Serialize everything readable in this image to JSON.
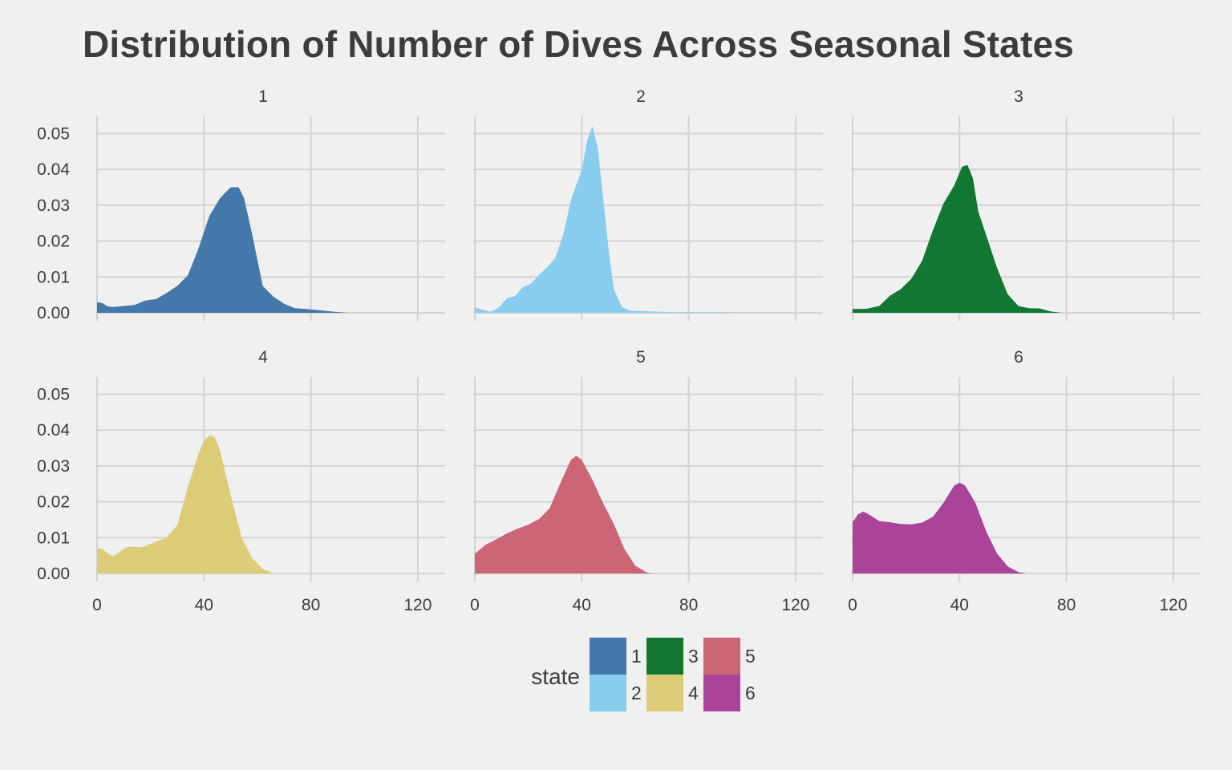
{
  "chart_data": {
    "type": "area",
    "subtype": "faceted density",
    "title": "Distribution of Number of Dives Across Seasonal States",
    "xlabel": "",
    "ylabel": "",
    "xlim": [
      0,
      130
    ],
    "ylim": [
      0,
      0.055
    ],
    "x_ticks": [
      0,
      40,
      80,
      120
    ],
    "x_tick_labels": [
      "0",
      "40",
      "80",
      "120"
    ],
    "y_ticks": [
      0,
      0.01,
      0.02,
      0.03,
      0.04,
      0.05
    ],
    "y_tick_labels": [
      "0.00",
      "0.01",
      "0.02",
      "0.03",
      "0.04",
      "0.05"
    ],
    "grid": true,
    "facet_layout": {
      "rows": 2,
      "cols": 3
    },
    "legend": {
      "title": "state",
      "placement": "bottom"
    },
    "series": [
      {
        "name": "1",
        "color": "#4477aa",
        "x": [
          0,
          2,
          4,
          6,
          10,
          14,
          18,
          22,
          26,
          30,
          34,
          38,
          42,
          46,
          50,
          53,
          55,
          58,
          62,
          66,
          70,
          74,
          78,
          82,
          86,
          90,
          94
        ],
        "y": [
          0.003,
          0.0027,
          0.0018,
          0.0016,
          0.0019,
          0.0022,
          0.0034,
          0.0038,
          0.0055,
          0.0075,
          0.0105,
          0.018,
          0.027,
          0.032,
          0.035,
          0.035,
          0.032,
          0.022,
          0.0075,
          0.0045,
          0.0025,
          0.0013,
          0.0011,
          0.0008,
          0.0005,
          0.0002,
          0.0
        ]
      },
      {
        "name": "2",
        "color": "#88ccee",
        "x": [
          0,
          3,
          6,
          9,
          12,
          15,
          18,
          21,
          24,
          27,
          30,
          33,
          36,
          38,
          40,
          42,
          44,
          46,
          48,
          50,
          52,
          55,
          58,
          62,
          66,
          70,
          75,
          80,
          85,
          90,
          95,
          100
        ],
        "y": [
          0.0015,
          0.0008,
          0.0003,
          0.0015,
          0.0041,
          0.0046,
          0.0072,
          0.0081,
          0.0106,
          0.0127,
          0.0152,
          0.0215,
          0.0316,
          0.0358,
          0.0398,
          0.048,
          0.052,
          0.046,
          0.032,
          0.018,
          0.0065,
          0.0016,
          0.0006,
          0.0005,
          0.0004,
          0.0003,
          0.0002,
          0.0002,
          0.0002,
          0.0002,
          0.0001,
          0.0
        ]
      },
      {
        "name": "3",
        "color": "#117733",
        "x": [
          0,
          5,
          10,
          14,
          18,
          22,
          26,
          30,
          34,
          38,
          41,
          43,
          45,
          47,
          50,
          54,
          58,
          62,
          66,
          70,
          74,
          78
        ],
        "y": [
          0.0011,
          0.0011,
          0.0019,
          0.0048,
          0.0066,
          0.0095,
          0.0145,
          0.023,
          0.0305,
          0.0355,
          0.0408,
          0.0412,
          0.0375,
          0.0283,
          0.0216,
          0.0126,
          0.0052,
          0.0019,
          0.0013,
          0.0012,
          0.0004,
          0.0
        ]
      },
      {
        "name": "4",
        "color": "#ddcc77",
        "x": [
          0,
          2,
          4,
          6,
          8,
          10,
          12,
          14,
          16,
          18,
          22,
          26,
          30,
          34,
          38,
          40,
          42,
          44,
          46,
          50,
          54,
          58,
          62,
          66
        ],
        "y": [
          0.007,
          0.0069,
          0.0056,
          0.0048,
          0.0058,
          0.0069,
          0.0075,
          0.0074,
          0.0073,
          0.0076,
          0.0089,
          0.01,
          0.0135,
          0.0242,
          0.0335,
          0.037,
          0.0385,
          0.038,
          0.0344,
          0.0219,
          0.0102,
          0.0043,
          0.0012,
          0.0
        ]
      },
      {
        "name": "5",
        "color": "#cc6677",
        "x": [
          0,
          4,
          8,
          12,
          16,
          20,
          24,
          28,
          32,
          36,
          38,
          40,
          44,
          48,
          52,
          56,
          60,
          64,
          66
        ],
        "y": [
          0.0055,
          0.008,
          0.0095,
          0.0112,
          0.0125,
          0.0136,
          0.0152,
          0.0182,
          0.0252,
          0.0318,
          0.0328,
          0.0317,
          0.0261,
          0.0196,
          0.0138,
          0.0068,
          0.0022,
          0.0004,
          0.0
        ]
      },
      {
        "name": "6",
        "color": "#aa4499",
        "x": [
          0,
          2,
          4,
          6,
          10,
          14,
          18,
          22,
          26,
          30,
          34,
          38,
          40,
          42,
          46,
          50,
          54,
          58,
          62,
          65
        ],
        "y": [
          0.0143,
          0.0165,
          0.0173,
          0.0165,
          0.0146,
          0.0143,
          0.0138,
          0.0137,
          0.0142,
          0.0158,
          0.0197,
          0.0245,
          0.0253,
          0.0246,
          0.0196,
          0.0117,
          0.0056,
          0.002,
          0.0004,
          0.0
        ]
      }
    ]
  }
}
